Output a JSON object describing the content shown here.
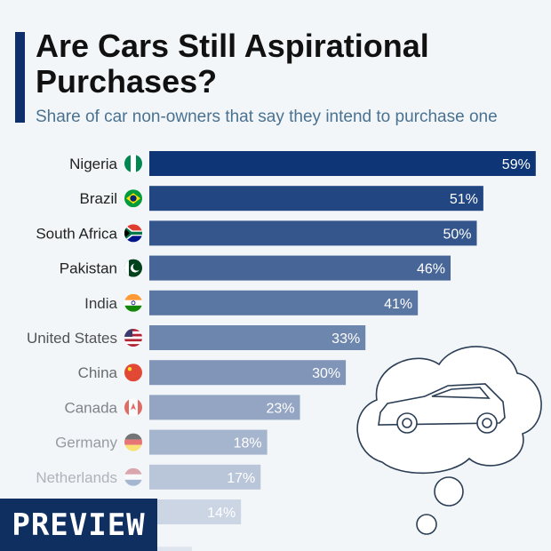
{
  "header": {
    "title": "Are Cars Still Aspirational Purchases?",
    "subtitle": "Share of car non-owners that say they intend to purchase one"
  },
  "preview_label": "PREVIEW",
  "colors": {
    "bar_dark": "#0e3676",
    "bar_light": "#dfe5ef",
    "accent": "#0d2f6c",
    "preview_bg": "#0f2f60"
  },
  "chart_data": {
    "type": "bar",
    "orientation": "horizontal",
    "categories": [
      "Nigeria",
      "Brazil",
      "South Africa",
      "Pakistan",
      "India",
      "United States",
      "China",
      "Canada",
      "Germany",
      "Netherlands",
      "",
      ""
    ],
    "values": [
      59,
      51,
      50,
      46,
      41,
      33,
      30,
      23,
      18,
      17,
      14,
      null
    ],
    "value_labels": [
      "59%",
      "51%",
      "50%",
      "46%",
      "41%",
      "33%",
      "30%",
      "23%",
      "18%",
      "17%",
      "14%",
      ""
    ],
    "flags": [
      "nigeria-flag-icon",
      "brazil-flag-icon",
      "south-africa-flag-icon",
      "pakistan-flag-icon",
      "india-flag-icon",
      "united-states-flag-icon",
      "china-flag-icon",
      "canada-flag-icon",
      "germany-flag-icon",
      "netherlands-flag-icon",
      "",
      ""
    ],
    "unit": "%",
    "xlim": [
      0,
      59
    ],
    "illustration": "car-in-thought-bubble-icon"
  }
}
